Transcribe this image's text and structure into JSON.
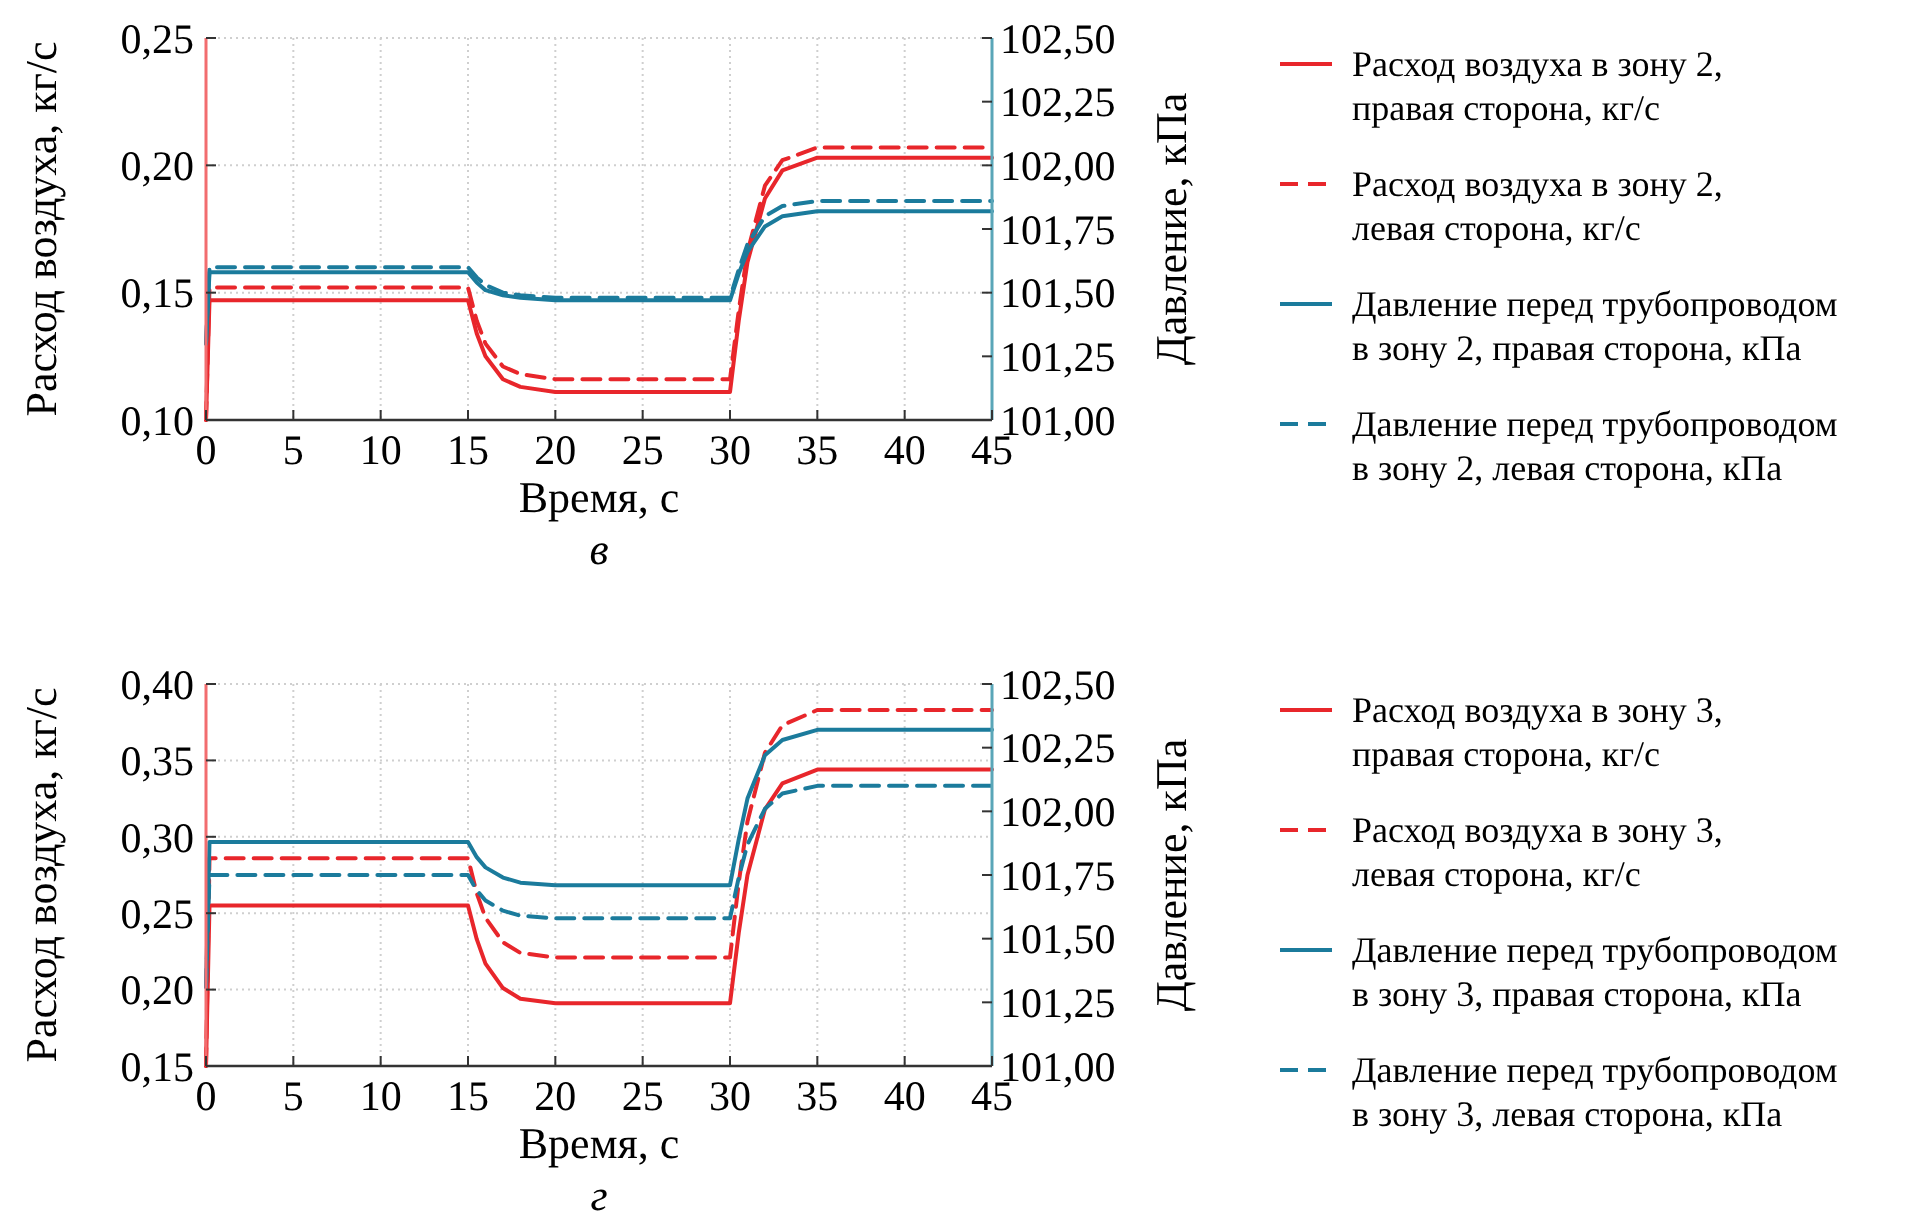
{
  "chart_data": [
    {
      "type": "line",
      "xlabel": "Время, с",
      "ylabel": "Расход воздуха, кг/с",
      "y2label": "Давление, кПа",
      "annotations": [
        "в"
      ],
      "x": [
        0,
        0.2,
        15,
        15.5,
        16,
        17,
        18,
        20,
        30,
        30.5,
        31,
        32,
        33,
        35,
        45
      ],
      "xlim": [
        0,
        45
      ],
      "xticks": [
        0,
        5,
        10,
        15,
        20,
        25,
        30,
        35,
        40,
        45
      ],
      "ylim": [
        0.1,
        0.25
      ],
      "yticks": [
        {
          "value": 0.1,
          "label": "0,10"
        },
        {
          "value": 0.15,
          "label": "0,15"
        },
        {
          "value": 0.2,
          "label": "0,20"
        },
        {
          "value": 0.25,
          "label": "0,25"
        }
      ],
      "y2lim": [
        101,
        102.5
      ],
      "y2ticks": [
        {
          "value": 101,
          "label": "101,00"
        },
        {
          "value": 101.25,
          "label": "101,25"
        },
        {
          "value": 101.5,
          "label": "101,50"
        },
        {
          "value": 101.75,
          "label": "101,75"
        },
        {
          "value": 102,
          "label": "102,00"
        },
        {
          "value": 102.25,
          "label": "102,25"
        },
        {
          "value": 102.5,
          "label": "102,50"
        }
      ],
      "grid": true,
      "legend": "right",
      "series": [
        {
          "name": "Расход воздуха в зону 2, правая сторона, кг/с",
          "color": "#e8262b",
          "line_style": "solid",
          "values": [
            0.1,
            0.147,
            0.147,
            0.134,
            0.125,
            0.116,
            0.113,
            0.111,
            0.111,
            0.139,
            0.162,
            0.187,
            0.198,
            0.203,
            0.203
          ]
        },
        {
          "name": "Расход воздуха в зону 2, левая сторона, кг/с",
          "color": "#e8262b",
          "line_style": "dashed",
          "values": [
            0.1,
            0.152,
            0.152,
            0.139,
            0.13,
            0.121,
            0.118,
            0.116,
            0.116,
            0.143,
            0.166,
            0.192,
            0.202,
            0.207,
            0.207
          ]
        },
        {
          "name": "Давление перед трубопроводом в зону 2, правая сторона, кПа",
          "color": "#1b7b9c",
          "line_style": "solid",
          "axis": "y2",
          "values": [
            101.3,
            101.58,
            101.58,
            101.54,
            101.51,
            101.49,
            101.48,
            101.47,
            101.47,
            101.575,
            101.66,
            101.76,
            101.8,
            101.82,
            101.82
          ]
        },
        {
          "name": "Давление перед трубопроводом в зону 2, левая сторона, кПа",
          "color": "#1b7b9c",
          "line_style": "dashed",
          "axis": "y2",
          "values": [
            101.3,
            101.6,
            101.6,
            101.56,
            101.53,
            101.5,
            101.49,
            101.48,
            101.48,
            101.59,
            101.69,
            101.8,
            101.84,
            101.86,
            101.86
          ]
        }
      ]
    },
    {
      "type": "line",
      "xlabel": "Время, с",
      "ylabel": "Расход воздуха, кг/с",
      "y2label": "Давление, кПа",
      "annotations": [
        "г"
      ],
      "x": [
        0,
        0.2,
        15,
        15.5,
        16,
        17,
        18,
        20,
        30,
        30.5,
        31,
        32,
        33,
        35,
        45
      ],
      "xlim": [
        0,
        45
      ],
      "xticks": [
        0,
        5,
        10,
        15,
        20,
        25,
        30,
        35,
        40,
        45
      ],
      "ylim": [
        0.15,
        0.4
      ],
      "yticks": [
        {
          "value": 0.15,
          "label": "0,15"
        },
        {
          "value": 0.2,
          "label": "0,20"
        },
        {
          "value": 0.25,
          "label": "0,25"
        },
        {
          "value": 0.3,
          "label": "0,30"
        },
        {
          "value": 0.35,
          "label": "0,35"
        },
        {
          "value": 0.4,
          "label": "0,40"
        }
      ],
      "y2lim": [
        101,
        102.5
      ],
      "y2ticks": [
        {
          "value": 101,
          "label": "101,00"
        },
        {
          "value": 101.25,
          "label": "101,25"
        },
        {
          "value": 101.5,
          "label": "101,50"
        },
        {
          "value": 101.75,
          "label": "101,75"
        },
        {
          "value": 102,
          "label": "102,00"
        },
        {
          "value": 102.25,
          "label": "102,25"
        },
        {
          "value": 102.5,
          "label": "102,50"
        }
      ],
      "grid": true,
      "legend": "right",
      "series": [
        {
          "name": "Расход воздуха в зону 3, правая сторона, кг/с",
          "color": "#e8262b",
          "line_style": "solid",
          "values": [
            0.15,
            0.255,
            0.255,
            0.233,
            0.217,
            0.201,
            0.194,
            0.191,
            0.191,
            0.237,
            0.275,
            0.318,
            0.335,
            0.344,
            0.344
          ]
        },
        {
          "name": "Расход воздуха в зону 3, левая сторона, кг/с",
          "color": "#e8262b",
          "line_style": "dashed",
          "values": [
            0.15,
            0.286,
            0.286,
            0.263,
            0.247,
            0.231,
            0.224,
            0.221,
            0.221,
            0.27,
            0.31,
            0.355,
            0.373,
            0.383,
            0.383
          ]
        },
        {
          "name": "Давление перед трубопроводом в зону 3, правая сторона, кПа",
          "color": "#1b7b9c",
          "line_style": "solid",
          "axis": "y2",
          "values": [
            101.31,
            101.88,
            101.88,
            101.82,
            101.78,
            101.74,
            101.72,
            101.71,
            101.71,
            101.89,
            102.05,
            102.22,
            102.28,
            102.32,
            102.32
          ]
        },
        {
          "name": "Давление перед трубопроводом в зону 3, левая сторона, кПа",
          "color": "#1b7b9c",
          "line_style": "dashed",
          "axis": "y2",
          "values": [
            101.31,
            101.75,
            101.75,
            101.69,
            101.65,
            101.61,
            101.59,
            101.58,
            101.58,
            101.74,
            101.87,
            102.01,
            102.07,
            102.1,
            102.1
          ]
        }
      ]
    }
  ]
}
